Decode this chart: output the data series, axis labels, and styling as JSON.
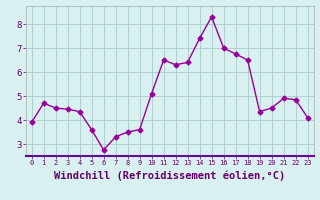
{
  "x": [
    0,
    1,
    2,
    3,
    4,
    5,
    6,
    7,
    8,
    9,
    10,
    11,
    12,
    13,
    14,
    15,
    16,
    17,
    18,
    19,
    20,
    21,
    22,
    23
  ],
  "y": [
    3.9,
    4.7,
    4.5,
    4.45,
    4.35,
    3.6,
    2.75,
    3.3,
    3.5,
    3.6,
    5.1,
    6.5,
    6.3,
    6.4,
    7.4,
    8.3,
    7.0,
    6.75,
    6.5,
    4.35,
    4.5,
    4.9,
    4.85,
    4.1
  ],
  "line_color": "#990099",
  "marker": "D",
  "markersize": 2.5,
  "linewidth": 1.0,
  "xlabel": "Windchill (Refroidissement éolien,°C)",
  "ylim": [
    2.5,
    8.75
  ],
  "yticks": [
    3,
    4,
    5,
    6,
    7,
    8
  ],
  "xticks": [
    0,
    1,
    2,
    3,
    4,
    5,
    6,
    7,
    8,
    9,
    10,
    11,
    12,
    13,
    14,
    15,
    16,
    17,
    18,
    19,
    20,
    21,
    22,
    23
  ],
  "xtick_labels": [
    "0",
    "1",
    "2",
    "3",
    "4",
    "5",
    "6",
    "7",
    "8",
    "9",
    "10",
    "11",
    "12",
    "13",
    "14",
    "15",
    "16",
    "17",
    "18",
    "19",
    "20",
    "21",
    "22",
    "23"
  ],
  "background_color": "#d8f0f0",
  "grid_color": "#aacccc",
  "bottom_bar_color": "#660099",
  "tick_label_color": "#660066",
  "xlabel_color": "#660066",
  "spine_color": "#aaaaaa"
}
